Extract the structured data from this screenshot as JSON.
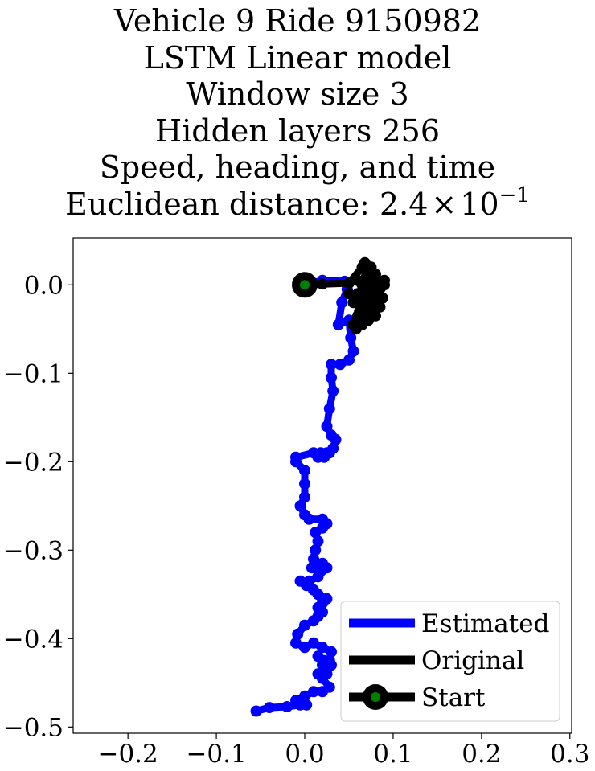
{
  "chart_data": {
    "type": "line",
    "title_lines": [
      "Vehicle 9 Ride 9150982",
      "LSTM Linear model",
      "Window size 3",
      "Hidden layers 256",
      "Speed, heading, and time"
    ],
    "metric": {
      "label": "Euclidean distance: ",
      "mantissa": "2.4",
      "times": "×",
      "base": "10",
      "exponent": "−1"
    },
    "xlim": [
      -0.262,
      0.302
    ],
    "ylim": [
      -0.507,
      0.053
    ],
    "xticks": [
      {
        "value": -0.2,
        "label": "−0.2"
      },
      {
        "value": -0.1,
        "label": "−0.1"
      },
      {
        "value": 0.0,
        "label": "0.0"
      },
      {
        "value": 0.1,
        "label": "0.1"
      },
      {
        "value": 0.2,
        "label": "0.2"
      },
      {
        "value": 0.3,
        "label": "0.3"
      }
    ],
    "yticks": [
      {
        "value": 0.0,
        "label": "0.0"
      },
      {
        "value": -0.1,
        "label": "−0.1"
      },
      {
        "value": -0.2,
        "label": "−0.2"
      },
      {
        "value": -0.3,
        "label": "−0.3"
      },
      {
        "value": -0.4,
        "label": "−0.4"
      },
      {
        "value": -0.5,
        "label": "−0.5"
      }
    ],
    "grid": false,
    "legend_position": "lower-right",
    "series": [
      {
        "name": "Estimated",
        "color": "#0000ff",
        "x": [
          0.0,
          0.02,
          0.045,
          0.048,
          0.042,
          0.038,
          0.05,
          0.052,
          0.055,
          0.05,
          0.04,
          0.03,
          0.03,
          0.032,
          0.028,
          0.025,
          0.03,
          0.035,
          0.032,
          0.028,
          0.025,
          0.022,
          0.015,
          0.018,
          0.01,
          -0.01,
          -0.01,
          0.0,
          0.0,
          0.0,
          -0.005,
          0.0,
          0.005,
          0.02,
          0.025,
          0.02,
          0.012,
          0.015,
          0.012,
          0.01,
          0.008,
          0.015,
          0.02,
          0.025,
          0.015,
          0.005,
          -0.005,
          0.002,
          0.01,
          0.015,
          0.02,
          0.025,
          0.02,
          0.015,
          0.02,
          0.015,
          0.01,
          0.0,
          -0.008,
          -0.01,
          0.0,
          0.01,
          0.02,
          0.03,
          0.028,
          0.022,
          0.015,
          0.02,
          0.03,
          0.025,
          0.015,
          0.02,
          0.028,
          0.02,
          0.01,
          0.0,
          -0.01,
          0.002,
          -0.005,
          -0.02,
          -0.04,
          -0.055
        ],
        "y": [
          0.0,
          0.005,
          0.004,
          -0.005,
          -0.02,
          -0.045,
          -0.04,
          -0.06,
          -0.075,
          -0.085,
          -0.09,
          -0.09,
          -0.105,
          -0.12,
          -0.14,
          -0.16,
          -0.17,
          -0.175,
          -0.185,
          -0.19,
          -0.19,
          -0.195,
          -0.195,
          -0.19,
          -0.19,
          -0.195,
          -0.2,
          -0.21,
          -0.225,
          -0.24,
          -0.25,
          -0.26,
          -0.265,
          -0.265,
          -0.27,
          -0.275,
          -0.28,
          -0.29,
          -0.3,
          -0.31,
          -0.32,
          -0.32,
          -0.315,
          -0.32,
          -0.33,
          -0.335,
          -0.335,
          -0.34,
          -0.345,
          -0.35,
          -0.355,
          -0.355,
          -0.36,
          -0.365,
          -0.37,
          -0.375,
          -0.38,
          -0.385,
          -0.395,
          -0.405,
          -0.41,
          -0.405,
          -0.41,
          -0.415,
          -0.425,
          -0.425,
          -0.42,
          -0.43,
          -0.43,
          -0.44,
          -0.44,
          -0.445,
          -0.455,
          -0.46,
          -0.46,
          -0.465,
          -0.47,
          -0.475,
          -0.475,
          -0.477,
          -0.478,
          -0.482
        ]
      },
      {
        "name": "Original",
        "color": "#000000",
        "x": [
          0.0,
          0.02,
          0.05,
          0.065,
          0.08,
          0.068,
          0.085,
          0.06,
          0.09,
          0.055,
          0.075,
          0.07,
          0.085,
          0.05,
          0.072,
          0.06,
          0.088,
          0.065,
          0.078,
          0.058,
          0.07,
          0.082,
          0.062,
          0.075,
          0.068,
          0.09,
          0.06,
          0.07,
          0.055,
          0.08,
          0.066
        ],
        "y": [
          0.0,
          0.001,
          0.002,
          0.02,
          0.012,
          0.025,
          0.0,
          -0.01,
          0.005,
          -0.02,
          -0.03,
          0.015,
          -0.025,
          -0.01,
          -0.04,
          -0.035,
          -0.015,
          -0.045,
          -0.005,
          -0.05,
          0.01,
          -0.02,
          -0.03,
          0.02,
          -0.04,
          0.0,
          0.005,
          -0.015,
          -0.045,
          -0.035,
          -0.02
        ]
      }
    ],
    "start_point": {
      "name": "Start",
      "x": 0.0,
      "y": 0.0,
      "marker_color": "#008000",
      "edge_color": "#000000"
    },
    "legend_entries": [
      "Estimated",
      "Original",
      "Start"
    ]
  }
}
